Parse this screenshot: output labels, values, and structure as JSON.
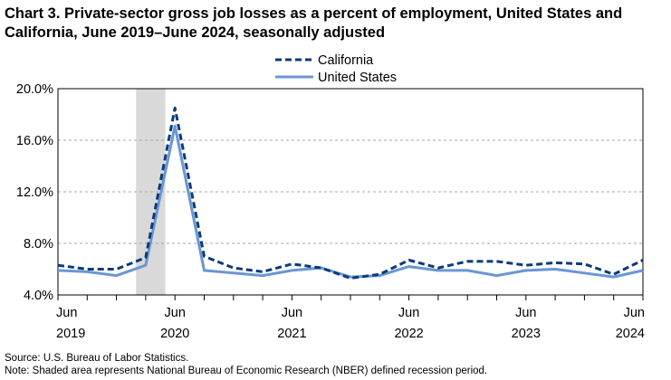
{
  "chart_data": {
    "type": "line",
    "title": "Chart 3. Private-sector gross job losses as a percent of employment, United States and California, June 2019–June 2024, seasonally adjusted",
    "ylim": [
      4.0,
      20.0
    ],
    "yticks": [
      "4.0%",
      "8.0%",
      "12.0%",
      "16.0%",
      "20.0%"
    ],
    "ytick_values": [
      4,
      8,
      12,
      16,
      20
    ],
    "x_tick_labels": [
      {
        "month": "Jun",
        "year": "2019",
        "index": 0
      },
      {
        "month": "Jun",
        "year": "2020",
        "index": 4
      },
      {
        "month": "Jun",
        "year": "2021",
        "index": 8
      },
      {
        "month": "Jun",
        "year": "2022",
        "index": 12
      },
      {
        "month": "Jun",
        "year": "2023",
        "index": 16
      },
      {
        "month": "Jun",
        "year": "2024",
        "index": 20
      }
    ],
    "x": [
      "Jun 2019",
      "Sep 2019",
      "Dec 2019",
      "Mar 2020",
      "Jun 2020",
      "Sep 2020",
      "Dec 2020",
      "Mar 2021",
      "Jun 2021",
      "Sep 2021",
      "Dec 2021",
      "Mar 2022",
      "Jun 2022",
      "Sep 2022",
      "Dec 2022",
      "Mar 2023",
      "Jun 2023",
      "Sep 2023",
      "Dec 2023",
      "Mar 2024",
      "Jun 2024"
    ],
    "recession": {
      "start": "Dec 2019",
      "end": "Mar 2020",
      "start_index": 2.67,
      "end_index": 3.67
    },
    "grid": true,
    "legend_position": "top-center",
    "series": [
      {
        "name": "California",
        "style": "dashed",
        "color": "#0b3a7a",
        "values": [
          6.3,
          6.0,
          6.0,
          6.9,
          18.5,
          7.0,
          6.1,
          5.8,
          6.4,
          6.1,
          5.3,
          5.6,
          6.7,
          6.1,
          6.6,
          6.6,
          6.3,
          6.5,
          6.4,
          5.6,
          6.7
        ]
      },
      {
        "name": "United States",
        "style": "solid",
        "color": "#6a96d4",
        "values": [
          5.9,
          5.8,
          5.5,
          6.3,
          17.1,
          5.9,
          5.7,
          5.5,
          5.9,
          6.1,
          5.4,
          5.5,
          6.2,
          5.9,
          5.9,
          5.5,
          5.9,
          6.0,
          5.7,
          5.4,
          5.9
        ]
      }
    ]
  },
  "footer": {
    "source": "Source: U.S. Bureau of Labor Statistics.",
    "note": "Note: Shaded area represents National Bureau of Economic Research (NBER) defined  recession period."
  }
}
